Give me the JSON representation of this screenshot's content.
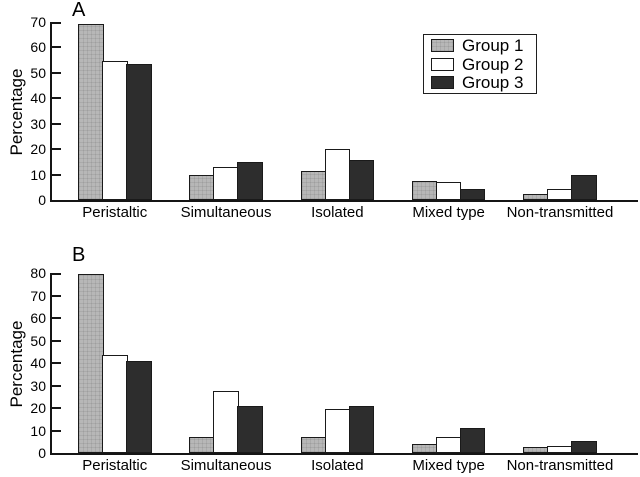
{
  "colors": {
    "group1_fill": "#b7b7b7",
    "group2_fill": "#ffffff",
    "group3_fill": "#2d2d2d",
    "bar_border": "#1a1a1a",
    "axis": "#151515",
    "text": "#000000"
  },
  "legend": {
    "items": [
      {
        "label": "Group 1",
        "swatch": "group1"
      },
      {
        "label": "Group 2",
        "swatch": "group2"
      },
      {
        "label": "Group 3",
        "swatch": "group3"
      }
    ]
  },
  "chart_data": [
    {
      "type": "bar",
      "panel_label": "A",
      "title": "",
      "xlabel": "",
      "ylabel": "Percentage",
      "categories": [
        "Peristaltic",
        "Simultaneous",
        "Isolated",
        "Mixed type",
        "Non-transmitted"
      ],
      "series": [
        {
          "name": "Group 1",
          "values": [
            69,
            10,
            11.5,
            7.5,
            2.5
          ]
        },
        {
          "name": "Group 2",
          "values": [
            54.5,
            13,
            20,
            7,
            4.5
          ]
        },
        {
          "name": "Group 3",
          "values": [
            53.5,
            15,
            15.5,
            4.5,
            10
          ]
        }
      ],
      "ylim": [
        0,
        70
      ],
      "yticks": [
        0,
        10,
        20,
        30,
        40,
        50,
        60,
        70
      ],
      "grid": false,
      "legend_position": "upper right"
    },
    {
      "type": "bar",
      "panel_label": "B",
      "title": "",
      "xlabel": "",
      "ylabel": "Percentage",
      "categories": [
        "Peristaltic",
        "Simultaneous",
        "Isolated",
        "Mixed type",
        "Non-transmitted"
      ],
      "series": [
        {
          "name": "Group 1",
          "values": [
            79.5,
            7,
            7,
            4,
            2.5
          ]
        },
        {
          "name": "Group 2",
          "values": [
            43.5,
            27.5,
            19.5,
            7,
            3
          ]
        },
        {
          "name": "Group 3",
          "values": [
            41,
            21,
            21,
            11,
            5.5
          ]
        }
      ],
      "ylim": [
        0,
        80
      ],
      "yticks": [
        0,
        10,
        20,
        30,
        40,
        50,
        60,
        70,
        80
      ],
      "grid": false,
      "legend_position": "none"
    }
  ]
}
